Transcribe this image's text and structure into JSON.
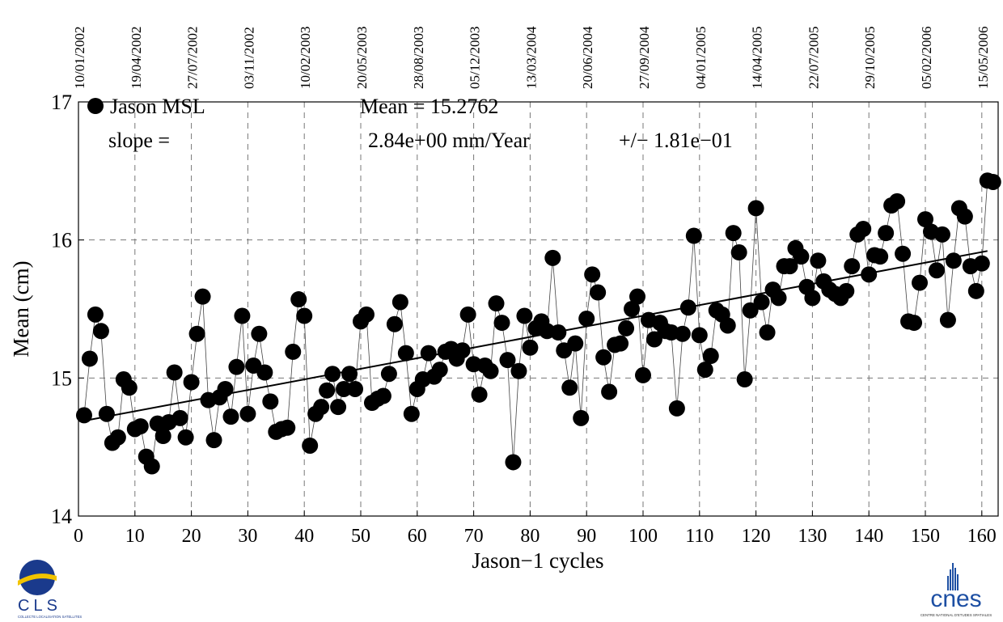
{
  "chart_data": {
    "type": "scatter",
    "title": "",
    "xlabel": "Jason−1 cycles",
    "ylabel": "Mean (cm)",
    "xlim": [
      0,
      163
    ],
    "ylim": [
      14,
      17
    ],
    "grid": true,
    "legend": {
      "label": "Jason MSL",
      "placement": "top-left"
    },
    "stats": {
      "mean_text": "Mean = 15.2762",
      "slope_label": "slope =",
      "slope_value": "2.84e+00 mm/Year",
      "slope_error": "+/−  1.81e−01"
    },
    "x_ticks": [
      0,
      10,
      20,
      30,
      40,
      50,
      60,
      70,
      80,
      90,
      100,
      110,
      120,
      130,
      140,
      150,
      160
    ],
    "y_ticks": [
      14,
      15,
      16,
      17
    ],
    "top_dates": [
      {
        "cycle": 0,
        "label": "10/01/2002"
      },
      {
        "cycle": 10,
        "label": "19/04/2002"
      },
      {
        "cycle": 20,
        "label": "27/07/2002"
      },
      {
        "cycle": 30,
        "label": "03/11/2002"
      },
      {
        "cycle": 40,
        "label": "10/02/2003"
      },
      {
        "cycle": 50,
        "label": "20/05/2003"
      },
      {
        "cycle": 60,
        "label": "28/08/2003"
      },
      {
        "cycle": 70,
        "label": "05/12/2003"
      },
      {
        "cycle": 80,
        "label": "13/03/2004"
      },
      {
        "cycle": 90,
        "label": "20/06/2004"
      },
      {
        "cycle": 100,
        "label": "27/09/2004"
      },
      {
        "cycle": 110,
        "label": "04/01/2005"
      },
      {
        "cycle": 120,
        "label": "14/04/2005"
      },
      {
        "cycle": 130,
        "label": "22/07/2005"
      },
      {
        "cycle": 140,
        "label": "29/10/2005"
      },
      {
        "cycle": 150,
        "label": "05/02/2006"
      },
      {
        "cycle": 160,
        "label": "15/05/2006"
      }
    ],
    "trend": {
      "x": [
        1,
        161
      ],
      "y": [
        14.69,
        15.92
      ]
    },
    "series": [
      {
        "x": [
          1,
          2,
          3,
          4,
          5,
          6,
          7,
          8,
          9,
          10,
          11,
          12,
          13,
          14,
          15,
          16,
          17,
          18,
          19,
          20,
          21,
          22,
          23,
          24,
          25,
          26,
          27,
          28,
          29,
          30,
          31,
          32,
          33,
          34,
          35,
          36,
          37,
          38,
          39,
          40,
          41,
          42,
          43,
          44,
          45,
          46,
          47,
          48,
          49,
          50,
          51,
          52,
          53,
          54,
          55,
          56,
          57,
          58,
          59,
          60,
          61,
          62,
          63,
          64,
          65,
          66,
          67,
          68,
          69,
          70,
          71,
          72,
          73,
          74,
          75,
          76,
          77,
          78,
          79,
          80,
          81,
          82,
          83,
          84,
          85,
          86,
          87,
          88,
          89,
          90,
          91,
          92,
          93,
          94,
          95,
          96,
          97,
          98,
          99,
          100,
          101,
          102,
          103,
          104,
          105,
          106,
          107,
          108,
          109,
          110,
          111,
          112,
          113,
          114,
          115,
          116,
          117,
          118,
          119,
          120,
          121,
          122,
          123,
          124,
          125,
          126,
          127,
          128,
          129,
          130,
          131,
          132,
          133,
          134,
          135,
          136,
          137,
          138,
          139,
          140,
          141,
          142,
          143,
          144,
          145,
          146,
          147,
          148,
          149,
          150,
          151,
          152,
          153,
          154,
          155,
          156,
          157,
          158,
          159,
          160,
          161,
          162
        ],
        "y": [
          14.73,
          15.14,
          15.46,
          15.34,
          14.74,
          14.53,
          14.57,
          14.99,
          14.93,
          14.63,
          14.65,
          14.43,
          14.36,
          14.67,
          14.58,
          14.68,
          15.04,
          14.71,
          14.57,
          14.97,
          15.32,
          15.59,
          14.84,
          14.55,
          14.86,
          14.92,
          14.72,
          15.08,
          15.45,
          14.74,
          15.09,
          15.32,
          15.04,
          14.83,
          14.61,
          14.63,
          14.64,
          15.19,
          15.57,
          15.45,
          14.51,
          14.74,
          14.79,
          14.91,
          15.03,
          14.79,
          14.92,
          15.03,
          14.92,
          15.41,
          15.46,
          14.82,
          14.85,
          14.87,
          15.03,
          15.39,
          15.55,
          15.18,
          14.74,
          14.92,
          14.99,
          15.18,
          15.01,
          15.06,
          15.19,
          15.21,
          15.14,
          15.2,
          15.46,
          15.1,
          14.88,
          15.09,
          15.05,
          15.54,
          15.4,
          15.13,
          14.39,
          15.05,
          15.45,
          15.22,
          15.36,
          15.41,
          15.34,
          15.87,
          15.33,
          15.2,
          14.93,
          15.25,
          14.71,
          15.43,
          15.75,
          15.62,
          15.15,
          14.9,
          15.24,
          15.25,
          15.36,
          15.5,
          15.59,
          15.02,
          15.42,
          15.28,
          15.4,
          15.34,
          15.33,
          14.78,
          15.32,
          15.51,
          16.03,
          15.31,
          15.06,
          15.16,
          15.49,
          15.46,
          15.38,
          16.05,
          15.91,
          14.99,
          15.49,
          16.23,
          15.55,
          15.33,
          15.64,
          15.58,
          15.81,
          15.81,
          15.94,
          15.88,
          15.66,
          15.58,
          15.85,
          15.7,
          15.64,
          15.61,
          15.58,
          15.63,
          15.81,
          16.04,
          16.08,
          15.75,
          15.89,
          15.88,
          16.05,
          16.25,
          16.28,
          15.9,
          15.41,
          15.4,
          15.69,
          16.15,
          16.06,
          15.78,
          16.04,
          15.42,
          15.85,
          16.23,
          16.17,
          15.81,
          15.63,
          15.83,
          16.43,
          16.42
        ]
      }
    ]
  },
  "logos": {
    "cls": {
      "text": "CLS",
      "subtext": "COLLECTE LOCALISATION SATELLITES",
      "colors": {
        "blue": "#1a3a8c",
        "yellow": "#f2c400"
      }
    },
    "cnes": {
      "text": "cnes",
      "subtext": "CENTRE NATIONAL D'ETUDES SPATIALES",
      "color": "#1d4fa3"
    }
  }
}
